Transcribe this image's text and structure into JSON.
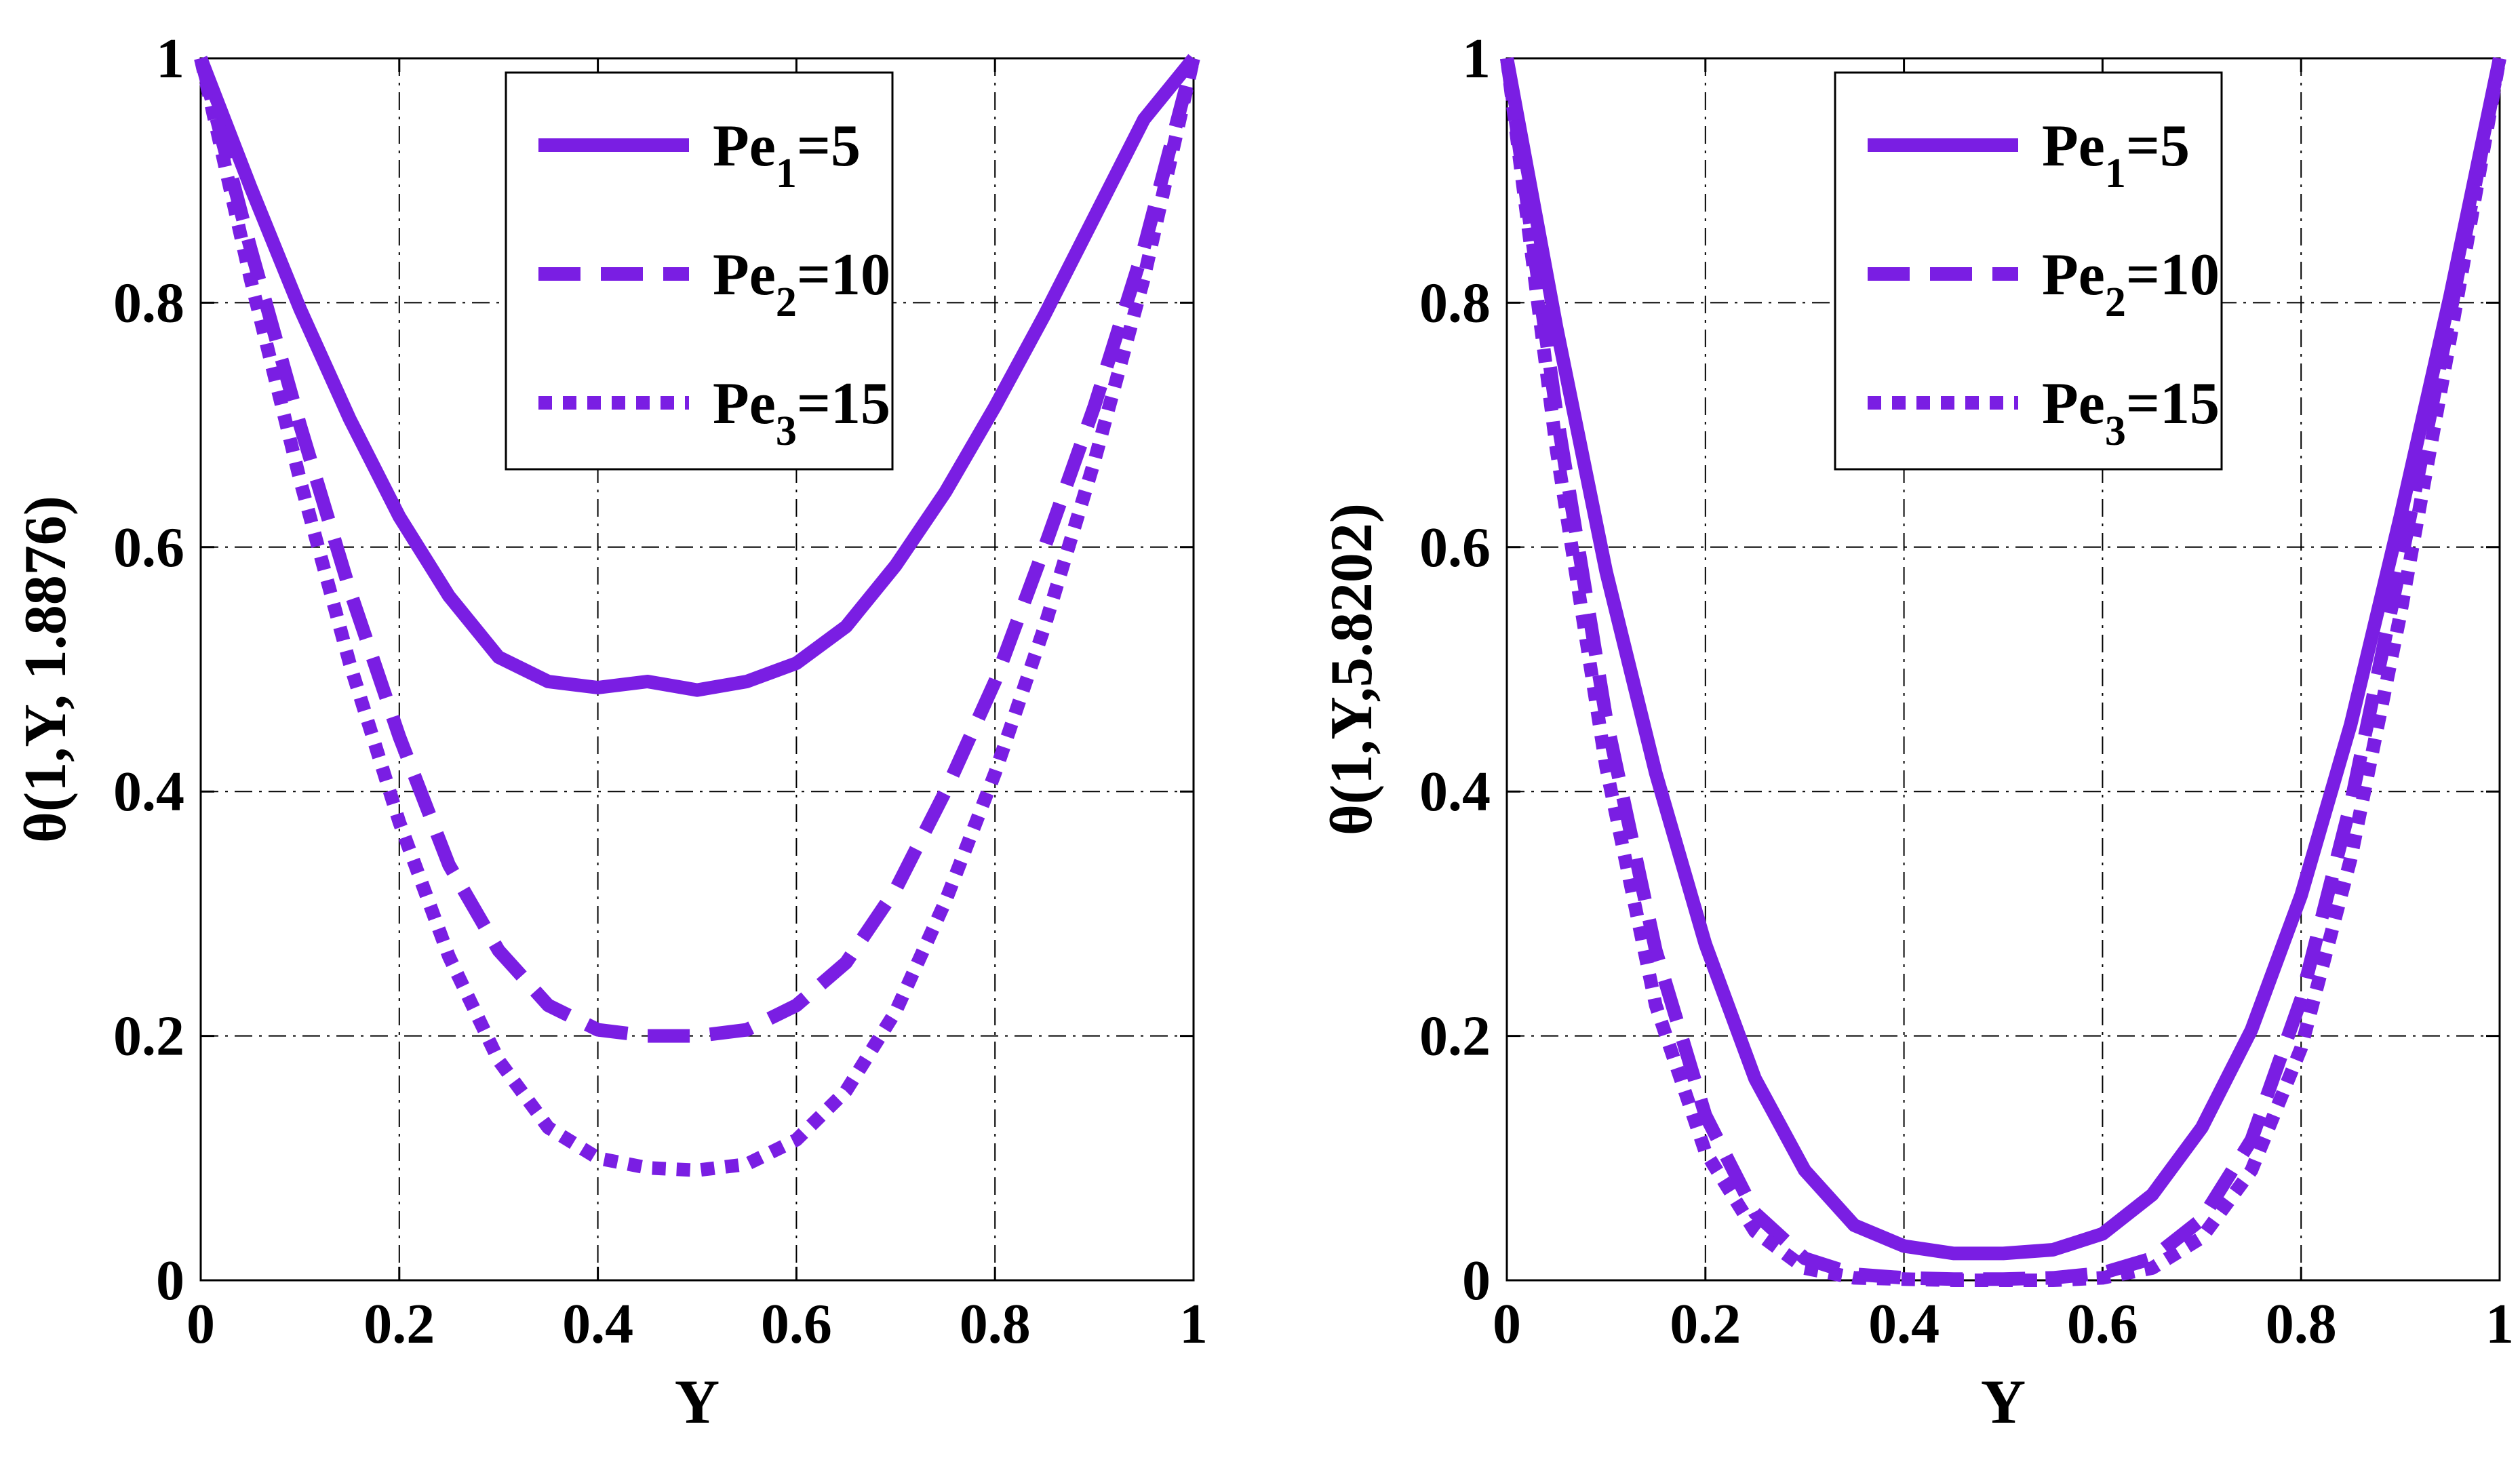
{
  "chart_data": [
    {
      "type": "line",
      "xlabel": "Y",
      "ylabel": "θ(1,Y, 1.8876)",
      "xlim": [
        0,
        1
      ],
      "ylim": [
        0,
        1
      ],
      "x_ticks": [
        "0",
        "0.2",
        "0.4",
        "0.6",
        "0.8",
        "1"
      ],
      "y_ticks": [
        "0",
        "0.2",
        "0.4",
        "0.6",
        "0.8",
        "1"
      ],
      "grid": true,
      "legend_position": "top-right",
      "x": [
        0,
        0.05,
        0.1,
        0.15,
        0.2,
        0.25,
        0.3,
        0.35,
        0.4,
        0.45,
        0.5,
        0.55,
        0.6,
        0.65,
        0.7,
        0.75,
        0.8,
        0.85,
        0.9,
        0.95,
        1
      ],
      "series": [
        {
          "name": "Pe1=5",
          "base": "Pe",
          "sub": "1",
          "value": "=5",
          "style": "solid",
          "values": [
            1,
            0.895,
            0.795,
            0.705,
            0.625,
            0.56,
            0.51,
            0.49,
            0.485,
            0.49,
            0.483,
            0.49,
            0.505,
            0.535,
            0.585,
            0.645,
            0.715,
            0.79,
            0.87,
            0.95,
            1
          ]
        },
        {
          "name": "Pe2=10",
          "base": "Pe",
          "sub": "2",
          "value": "=10",
          "style": "dashed",
          "values": [
            1,
            0.845,
            0.7,
            0.565,
            0.445,
            0.34,
            0.27,
            0.225,
            0.205,
            0.2,
            0.2,
            0.205,
            0.225,
            0.26,
            0.32,
            0.4,
            0.49,
            0.6,
            0.715,
            0.845,
            1
          ]
        },
        {
          "name": "Pe3=15",
          "base": "Pe",
          "sub": "3",
          "value": "=15",
          "style": "dotted",
          "values": [
            1,
            0.82,
            0.655,
            0.505,
            0.375,
            0.265,
            0.18,
            0.125,
            0.1,
            0.092,
            0.09,
            0.095,
            0.115,
            0.155,
            0.22,
            0.31,
            0.415,
            0.535,
            0.67,
            0.82,
            1
          ]
        }
      ]
    },
    {
      "type": "line",
      "xlabel": "Y",
      "ylabel": "θ(1,Y,5.8202)",
      "xlim": [
        0,
        1
      ],
      "ylim": [
        0,
        1
      ],
      "x_ticks": [
        "0",
        "0.2",
        "0.4",
        "0.6",
        "0.8",
        "1"
      ],
      "y_ticks": [
        "0",
        "0.2",
        "0.4",
        "0.6",
        "0.8",
        "1"
      ],
      "grid": true,
      "legend_position": "top-right",
      "x": [
        0,
        0.05,
        0.1,
        0.15,
        0.2,
        0.25,
        0.3,
        0.35,
        0.4,
        0.45,
        0.5,
        0.55,
        0.6,
        0.65,
        0.7,
        0.75,
        0.8,
        0.85,
        0.9,
        0.95,
        1
      ],
      "series": [
        {
          "name": "Pe1=5",
          "base": "Pe",
          "sub": "1",
          "value": "=5",
          "style": "solid",
          "values": [
            1,
            0.78,
            0.58,
            0.415,
            0.275,
            0.165,
            0.09,
            0.045,
            0.028,
            0.022,
            0.022,
            0.025,
            0.038,
            0.07,
            0.125,
            0.205,
            0.315,
            0.455,
            0.625,
            0.805,
            1
          ]
        },
        {
          "name": "Pe2=10",
          "base": "Pe",
          "sub": "2",
          "value": "=10",
          "style": "dashed",
          "values": [
            1,
            0.71,
            0.46,
            0.27,
            0.135,
            0.055,
            0.018,
            0.005,
            0.002,
            0.001,
            0.001,
            0.002,
            0.006,
            0.018,
            0.05,
            0.115,
            0.23,
            0.39,
            0.585,
            0.79,
            1
          ]
        },
        {
          "name": "Pe3=15",
          "base": "Pe",
          "sub": "3",
          "value": "=15",
          "style": "dotted",
          "values": [
            1,
            0.68,
            0.42,
            0.225,
            0.105,
            0.04,
            0.01,
            0.002,
            0.001,
            0,
            0,
            0,
            0.002,
            0.01,
            0.035,
            0.09,
            0.19,
            0.345,
            0.545,
            0.77,
            1
          ]
        }
      ]
    }
  ],
  "colors": {
    "line": "#7a1ee3",
    "grid": "#000000",
    "axis": "#000000"
  }
}
